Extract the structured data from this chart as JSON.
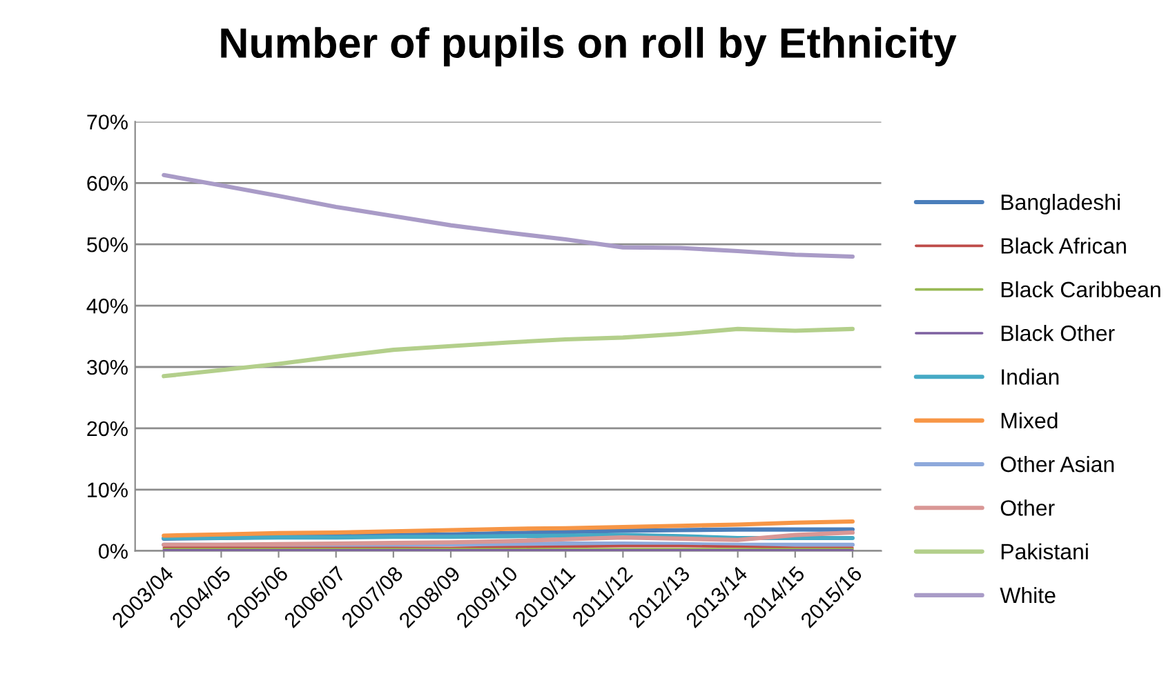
{
  "chart_data": {
    "type": "line",
    "title": "Number of pupils on roll by Ethnicity",
    "categories": [
      "2003/04",
      "2004/05",
      "2005/06",
      "2006/07",
      "2007/08",
      "2008/09",
      "2009/10",
      "2010/11",
      "2011/12",
      "2012/13",
      "2013/14",
      "2014/15",
      "2015/16"
    ],
    "series": [
      {
        "name": "Bangladeshi",
        "color": "#4a7ebb",
        "values": [
          2.0,
          2.1,
          2.3,
          2.4,
          2.6,
          2.7,
          2.9,
          3.1,
          3.3,
          3.4,
          3.5,
          3.5,
          3.5
        ]
      },
      {
        "name": "Black African",
        "color": "#be4b48",
        "values": [
          0.5,
          0.5,
          0.5,
          0.5,
          0.5,
          0.5,
          0.6,
          0.7,
          0.8,
          0.8,
          0.7,
          0.5,
          0.5
        ]
      },
      {
        "name": "Black Caribbean",
        "color": "#98b954",
        "values": [
          0.3,
          0.3,
          0.3,
          0.3,
          0.3,
          0.3,
          0.3,
          0.3,
          0.3,
          0.3,
          0.3,
          0.3,
          0.3
        ]
      },
      {
        "name": "Black Other",
        "color": "#7d60a0",
        "values": [
          0.1,
          0.1,
          0.1,
          0.1,
          0.1,
          0.1,
          0.1,
          0.1,
          0.1,
          0.1,
          0.1,
          0.1,
          0.1
        ]
      },
      {
        "name": "Indian",
        "color": "#46aac5",
        "values": [
          2.1,
          2.1,
          2.2,
          2.2,
          2.3,
          2.3,
          2.4,
          2.5,
          2.6,
          2.4,
          2.1,
          2.1,
          2.1
        ]
      },
      {
        "name": "Mixed",
        "color": "#f79646",
        "values": [
          2.5,
          2.7,
          2.9,
          3.0,
          3.2,
          3.4,
          3.6,
          3.7,
          3.9,
          4.1,
          4.3,
          4.6,
          4.8
        ]
      },
      {
        "name": "Other Asian",
        "color": "#8ea9db",
        "values": [
          1.0,
          1.0,
          1.0,
          1.0,
          1.0,
          1.1,
          1.1,
          1.2,
          1.2,
          1.1,
          1.0,
          1.0,
          1.0
        ]
      },
      {
        "name": "Other",
        "color": "#d99795",
        "values": [
          1.0,
          1.0,
          1.1,
          1.2,
          1.3,
          1.4,
          1.6,
          1.9,
          2.2,
          2.0,
          1.8,
          2.6,
          3.0
        ]
      },
      {
        "name": "Pakistani",
        "color": "#b3cf8b",
        "values": [
          28.5,
          29.5,
          30.5,
          31.7,
          32.8,
          33.4,
          34.0,
          34.5,
          34.8,
          35.4,
          36.2,
          35.9,
          36.2
        ]
      },
      {
        "name": "White",
        "color": "#a99bc7",
        "values": [
          61.3,
          59.6,
          57.9,
          56.1,
          54.6,
          53.1,
          51.9,
          50.8,
          49.5,
          49.4,
          48.9,
          48.3,
          48.0
        ]
      }
    ],
    "ylim": [
      0,
      70
    ],
    "yticks": [
      {
        "value": 0,
        "label": "0%"
      },
      {
        "value": 10,
        "label": "10%"
      },
      {
        "value": 20,
        "label": "20%"
      },
      {
        "value": 30,
        "label": "30%"
      },
      {
        "value": 40,
        "label": "40%"
      },
      {
        "value": 50,
        "label": "50%"
      },
      {
        "value": 60,
        "label": "60%"
      },
      {
        "value": 70,
        "label": "70%"
      }
    ],
    "grid": "y",
    "legend": "right",
    "marker": "none",
    "line_style": "solid"
  }
}
